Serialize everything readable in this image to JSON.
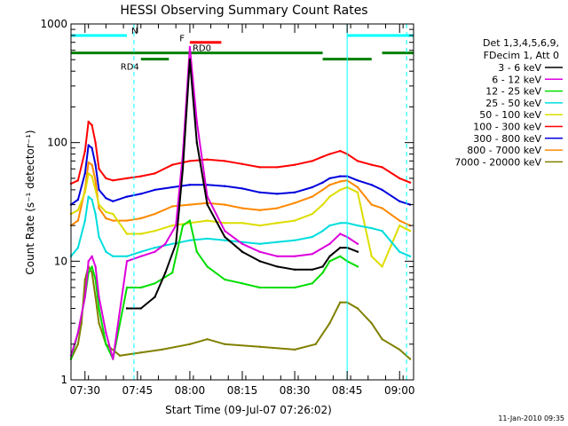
{
  "chart_data": {
    "type": "line",
    "title": "HESSI Observing Summary Count Rates",
    "xlabel": "Start Time (09-Jul-07 07:26:02)",
    "ylabel": "Count Rate (s⁻¹ detector⁻¹)",
    "yscale": "log",
    "ylim": [
      1,
      1000
    ],
    "xlim": [
      "07:26",
      "09:04"
    ],
    "x_tick_labels": [
      "07:30",
      "07:45",
      "08:00",
      "08:15",
      "08:30",
      "08:45",
      "09:00"
    ],
    "y_tick_labels": [
      "1",
      "10",
      "100",
      "1000"
    ],
    "timestamp": "11-Jan-2010 09:35",
    "legend": {
      "placement": "right",
      "header": [
        "Det 1,3,4,5,6,9,",
        "FDecim 1, Att 0"
      ]
    },
    "series": [
      {
        "name": "3 - 6 keV",
        "color": "#000000",
        "x": [
          "07:42",
          "07:46",
          "07:50",
          "07:53",
          "07:56",
          "07:58",
          "08:00",
          "08:02",
          "08:05",
          "08:10",
          "08:15",
          "08:20",
          "08:25",
          "08:30",
          "08:35",
          "08:38",
          "08:40",
          "08:43",
          "08:45",
          "08:48"
        ],
        "values": [
          4,
          4,
          5,
          8,
          14,
          60,
          500,
          100,
          30,
          16,
          12,
          10,
          9,
          8.5,
          8.5,
          9,
          11,
          13,
          13,
          12
        ]
      },
      {
        "name": "6 - 12 keV",
        "color": "#dd00dd",
        "x": [
          "07:26",
          "07:28",
          "07:30",
          "07:31",
          "07:32",
          "07:33",
          "07:34",
          "07:36",
          "07:38",
          "07:42",
          "07:46",
          "07:50",
          "07:53",
          "07:56",
          "07:58",
          "08:00",
          "08:02",
          "08:05",
          "08:10",
          "08:15",
          "08:20",
          "08:25",
          "08:30",
          "08:35",
          "08:40",
          "08:43",
          "08:45",
          "08:48"
        ],
        "values": [
          1.6,
          2.5,
          5,
          10,
          11,
          9,
          5,
          2.5,
          1.5,
          10,
          11,
          12,
          14,
          20,
          80,
          640,
          150,
          35,
          18,
          14,
          12,
          11,
          11,
          11.5,
          14,
          17,
          16,
          14
        ]
      },
      {
        "name": "12 - 25 keV",
        "color": "#00dd00",
        "x": [
          "07:26",
          "07:28",
          "07:30",
          "07:31",
          "07:32",
          "07:33",
          "07:34",
          "07:36",
          "07:38",
          "07:42",
          "07:46",
          "07:50",
          "07:55",
          "07:58",
          "08:00",
          "08:02",
          "08:05",
          "08:10",
          "08:15",
          "08:20",
          "08:25",
          "08:30",
          "08:35",
          "08:38",
          "08:40",
          "08:43",
          "08:45",
          "08:48"
        ],
        "values": [
          1.5,
          2.5,
          5,
          8,
          9,
          7,
          4,
          2,
          1.5,
          6,
          6,
          6.5,
          8,
          20,
          22,
          12,
          9,
          7,
          6.5,
          6,
          6,
          6,
          6.5,
          8,
          10,
          11,
          10,
          9
        ]
      },
      {
        "name": "25 - 50 keV",
        "color": "#00dddd",
        "x": [
          "07:26",
          "07:28",
          "07:30",
          "07:31",
          "07:32",
          "07:33",
          "07:34",
          "07:36",
          "07:38",
          "07:42",
          "07:46",
          "07:50",
          "07:55",
          "08:00",
          "08:05",
          "08:10",
          "08:15",
          "08:20",
          "08:25",
          "08:30",
          "08:35",
          "08:38",
          "08:40",
          "08:43",
          "08:45",
          "08:48",
          "08:52",
          "08:55",
          "09:00",
          "09:03"
        ],
        "values": [
          11,
          13,
          22,
          35,
          33,
          25,
          16,
          12,
          11,
          11,
          12,
          13,
          14,
          15,
          15.5,
          15,
          14.5,
          14,
          14.5,
          15,
          16,
          18,
          20,
          21,
          21,
          20,
          19,
          18,
          12,
          11
        ]
      },
      {
        "name": "50 - 100 keV",
        "color": "#dddd00",
        "x": [
          "07:26",
          "07:28",
          "07:30",
          "07:31",
          "07:32",
          "07:33",
          "07:34",
          "07:36",
          "07:38",
          "07:42",
          "07:46",
          "07:50",
          "07:55",
          "08:00",
          "08:05",
          "08:10",
          "08:15",
          "08:20",
          "08:25",
          "08:30",
          "08:35",
          "08:38",
          "08:40",
          "08:43",
          "08:45",
          "08:48",
          "08:52",
          "08:55",
          "09:00",
          "09:03"
        ],
        "values": [
          25,
          27,
          38,
          55,
          52,
          40,
          30,
          26,
          25,
          17,
          17,
          18,
          20,
          21,
          22,
          21,
          21,
          20,
          21,
          22,
          25,
          30,
          35,
          40,
          42,
          38,
          11,
          9,
          20,
          18
        ]
      },
      {
        "name": "100 - 300 keV",
        "color": "#ff0000",
        "x": [
          "07:26",
          "07:28",
          "07:30",
          "07:31",
          "07:32",
          "07:33",
          "07:34",
          "07:36",
          "07:38",
          "07:42",
          "07:46",
          "07:50",
          "07:55",
          "08:00",
          "08:05",
          "08:10",
          "08:15",
          "08:20",
          "08:25",
          "08:30",
          "08:35",
          "08:38",
          "08:40",
          "08:43",
          "08:45",
          "08:48",
          "08:52",
          "08:55",
          "09:00",
          "09:03"
        ],
        "values": [
          45,
          48,
          85,
          150,
          140,
          100,
          60,
          50,
          48,
          50,
          52,
          55,
          65,
          70,
          72,
          70,
          66,
          62,
          62,
          65,
          70,
          76,
          80,
          85,
          80,
          70,
          65,
          62,
          50,
          46
        ]
      },
      {
        "name": "300 - 800 keV",
        "color": "#0000dd",
        "x": [
          "07:26",
          "07:28",
          "07:30",
          "07:31",
          "07:32",
          "07:33",
          "07:34",
          "07:36",
          "07:38",
          "07:42",
          "07:46",
          "07:50",
          "07:55",
          "08:00",
          "08:05",
          "08:10",
          "08:15",
          "08:20",
          "08:25",
          "08:30",
          "08:35",
          "08:38",
          "08:40",
          "08:43",
          "08:45",
          "08:48",
          "08:52",
          "08:55",
          "09:00",
          "09:03"
        ],
        "values": [
          30,
          33,
          55,
          95,
          90,
          65,
          40,
          34,
          32,
          35,
          37,
          40,
          42,
          44,
          44,
          43,
          41,
          38,
          37,
          38,
          42,
          46,
          50,
          52,
          52,
          48,
          44,
          40,
          32,
          30
        ]
      },
      {
        "name": "800 - 7000 keV",
        "color": "#ff8800",
        "x": [
          "07:26",
          "07:28",
          "07:30",
          "07:31",
          "07:32",
          "07:33",
          "07:34",
          "07:36",
          "07:38",
          "07:42",
          "07:46",
          "07:50",
          "07:55",
          "08:00",
          "08:05",
          "08:10",
          "08:15",
          "08:20",
          "08:25",
          "08:30",
          "08:35",
          "08:38",
          "08:40",
          "08:43",
          "08:45",
          "08:48",
          "08:52",
          "08:55",
          "09:00",
          "09:03"
        ],
        "values": [
          20,
          22,
          40,
          68,
          65,
          48,
          28,
          23,
          22,
          22,
          23,
          25,
          29,
          30,
          31,
          30,
          28,
          27,
          28,
          31,
          35,
          40,
          44,
          47,
          48,
          42,
          30,
          28,
          22,
          20
        ]
      },
      {
        "name": "7000 - 20000 keV",
        "color": "#808000",
        "x": [
          "07:26",
          "07:28",
          "07:29",
          "07:30",
          "07:31",
          "07:32",
          "07:33",
          "07:34",
          "07:36",
          "07:40",
          "07:46",
          "07:52",
          "08:00",
          "08:05",
          "08:10",
          "08:20",
          "08:30",
          "08:36",
          "08:40",
          "08:43",
          "08:45",
          "08:48",
          "08:52",
          "08:55",
          "09:00",
          "09:03"
        ],
        "values": [
          1.5,
          2,
          3,
          7,
          9,
          8,
          5,
          3,
          2,
          1.6,
          1.7,
          1.8,
          2,
          2.2,
          2,
          1.9,
          1.8,
          2,
          3,
          4.5,
          4.5,
          4,
          3,
          2.2,
          1.8,
          1.5
        ]
      }
    ],
    "state_bars": [
      {
        "label": "N",
        "color": "#00ffff",
        "value": 800,
        "segments": [
          [
            "07:26",
            "07:42"
          ],
          [
            "08:45",
            "09:04"
          ]
        ]
      },
      {
        "label": "F",
        "color": "#ff0000",
        "value": 700,
        "segments": [
          [
            "08:00",
            "08:09"
          ]
        ]
      },
      {
        "label": "RD0",
        "color": "#008000",
        "value": 570,
        "segments": [
          [
            "07:26",
            "08:38"
          ],
          [
            "08:55",
            "09:04"
          ]
        ]
      },
      {
        "label": "RD4",
        "color": "#008000",
        "value": 505,
        "segments": [
          [
            "07:46",
            "07:54"
          ],
          [
            "08:38",
            "08:52"
          ]
        ]
      }
    ],
    "vertical_markers": [
      {
        "x": "07:44",
        "color": "#00ffff",
        "style": "dashed"
      },
      {
        "x": "08:45",
        "color": "#00ffff",
        "style": "solid"
      },
      {
        "x": "09:02",
        "color": "#00ffff",
        "style": "dashed"
      }
    ]
  }
}
